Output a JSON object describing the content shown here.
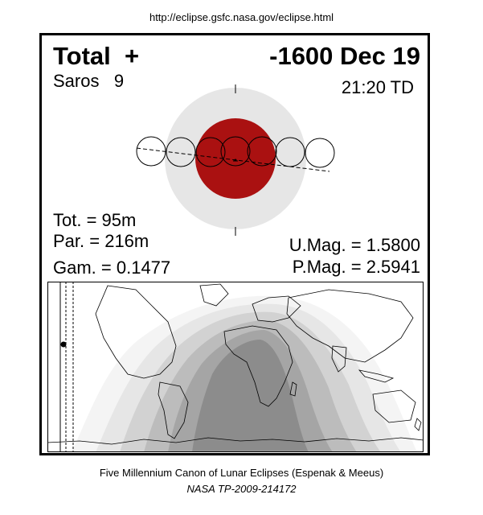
{
  "header": {
    "url": "http://eclipse.gsfc.nasa.gov/eclipse.html"
  },
  "eclipse": {
    "type": "Total",
    "type_symbol": "+",
    "date": "-1600 Dec 19",
    "saros_label": "Saros",
    "saros_number": "9",
    "time": "21:20 TD",
    "tot_duration": "Tot. =  95m",
    "par_duration": "Par. = 216m",
    "gamma": "Gam. = 0.1477",
    "umbral_magnitude": "U.Mag. = 1.5800",
    "penumbral_magnitude": "P.Mag. = 2.5941"
  },
  "colors": {
    "umbra": "#aa1111",
    "penumbra": "#e6e6e6",
    "map_dark": "#8c8c8c",
    "map_band1": "#a5a5a5",
    "map_band2": "#bcbcbc",
    "map_band3": "#d2d2d2",
    "map_band4": "#e6e6e6",
    "map_band5": "#f4f4f4"
  },
  "footer": {
    "line1": "Five Millennium Canon of Lunar Eclipses (Espenak & Meeus)",
    "line2": "NASA TP-2009-214172"
  }
}
